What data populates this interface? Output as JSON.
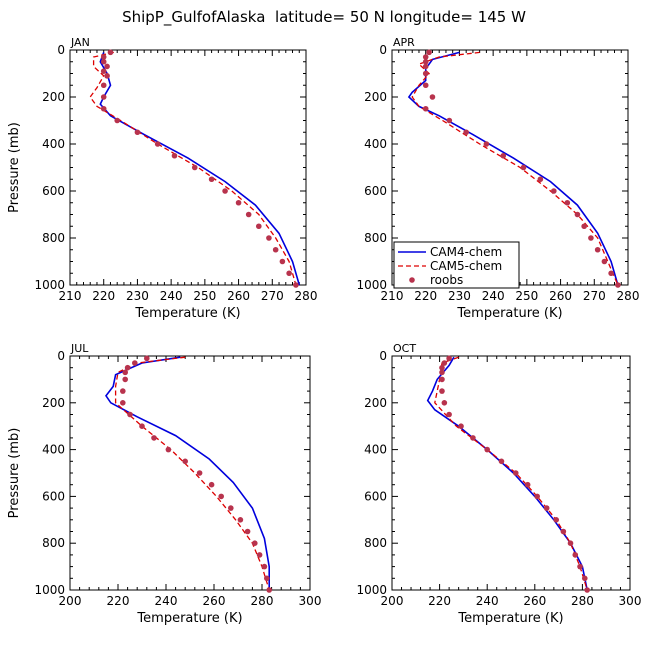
{
  "figure_title": "ShipP_GulfofAlaska  latitude= 50 N longitude= 145 W",
  "colors": {
    "cam4": "#0000dd",
    "cam5": "#dd0000",
    "roobs": "#b8334d"
  },
  "legend": [
    "CAM4-chem",
    "CAM5-chem",
    "roobs"
  ],
  "chart_data": [
    {
      "type": "line",
      "panel": "JAN",
      "xlabel": "Temperature (K)",
      "ylabel": "Pressure (mb)",
      "xlim": [
        210,
        280
      ],
      "ylim": [
        1000,
        0
      ],
      "xticks": [
        "210",
        "220",
        "230",
        "240",
        "250",
        "260",
        "270",
        "280"
      ],
      "yticks": [
        "0",
        "200",
        "400",
        "600",
        "800",
        "1000"
      ],
      "series": [
        {
          "name": "CAM4-chem",
          "style": "solid",
          "points": [
            [
              220,
              10
            ],
            [
              219,
              50
            ],
            [
              221,
              100
            ],
            [
              222,
              150
            ],
            [
              220,
              200
            ],
            [
              219,
              230
            ],
            [
              222,
              280
            ],
            [
              232,
              360
            ],
            [
              245,
              460
            ],
            [
              256,
              560
            ],
            [
              265,
              660
            ],
            [
              272,
              780
            ],
            [
              276,
              900
            ],
            [
              278,
              1000
            ]
          ]
        },
        {
          "name": "CAM5-chem",
          "style": "dashed",
          "points": [
            [
              223,
              10
            ],
            [
              217,
              30
            ],
            [
              217,
              70
            ],
            [
              220,
              110
            ],
            [
              218,
              160
            ],
            [
              216,
              200
            ],
            [
              218,
              240
            ],
            [
              225,
              300
            ],
            [
              236,
              400
            ],
            [
              248,
              500
            ],
            [
              258,
              600
            ],
            [
              266,
              700
            ],
            [
              271,
              800
            ],
            [
              275,
              900
            ],
            [
              277,
              1000
            ]
          ]
        },
        {
          "name": "roobs",
          "style": "markers",
          "points": [
            [
              222,
              10
            ],
            [
              220,
              30
            ],
            [
              220,
              50
            ],
            [
              221,
              70
            ],
            [
              220,
              90
            ],
            [
              221,
              110
            ],
            [
              220,
              150
            ],
            [
              220,
              200
            ],
            [
              220,
              250
            ],
            [
              224,
              300
            ],
            [
              230,
              350
            ],
            [
              236,
              400
            ],
            [
              241,
              450
            ],
            [
              247,
              500
            ],
            [
              252,
              550
            ],
            [
              256,
              600
            ],
            [
              260,
              650
            ],
            [
              263,
              700
            ],
            [
              266,
              750
            ],
            [
              269,
              800
            ],
            [
              271,
              850
            ],
            [
              273,
              900
            ],
            [
              275,
              950
            ],
            [
              277,
              1000
            ]
          ]
        }
      ]
    },
    {
      "type": "line",
      "panel": "APR",
      "xlabel": "Temperature (K)",
      "ylabel": "",
      "xlim": [
        210,
        280
      ],
      "ylim": [
        1000,
        0
      ],
      "xticks": [
        "210",
        "220",
        "230",
        "240",
        "250",
        "260",
        "270",
        "280"
      ],
      "yticks": [
        "0",
        "200",
        "400",
        "600",
        "800",
        "1000"
      ],
      "legend_position": "bottom-left",
      "series": [
        {
          "name": "CAM4-chem",
          "style": "solid",
          "points": [
            [
              230,
              10
            ],
            [
              222,
              40
            ],
            [
              220,
              80
            ],
            [
              220,
              130
            ],
            [
              216,
              180
            ],
            [
              215,
              200
            ],
            [
              218,
              240
            ],
            [
              224,
              280
            ],
            [
              234,
              360
            ],
            [
              246,
              460
            ],
            [
              257,
              560
            ],
            [
              265,
              660
            ],
            [
              271,
              780
            ],
            [
              275,
              900
            ],
            [
              277,
              1000
            ]
          ]
        },
        {
          "name": "CAM5-chem",
          "style": "dashed",
          "points": [
            [
              236,
              10
            ],
            [
              224,
              30
            ],
            [
              218,
              60
            ],
            [
              221,
              100
            ],
            [
              218,
              150
            ],
            [
              216,
              200
            ],
            [
              218,
              240
            ],
            [
              225,
              300
            ],
            [
              236,
              400
            ],
            [
              248,
              500
            ],
            [
              257,
              600
            ],
            [
              265,
              700
            ],
            [
              271,
              800
            ],
            [
              274,
              900
            ],
            [
              277,
              1000
            ]
          ]
        },
        {
          "name": "roobs",
          "style": "markers",
          "points": [
            [
              221,
              10
            ],
            [
              220,
              30
            ],
            [
              220,
              50
            ],
            [
              220,
              70
            ],
            [
              220,
              100
            ],
            [
              220,
              150
            ],
            [
              222,
              200
            ],
            [
              220,
              250
            ],
            [
              227,
              300
            ],
            [
              232,
              350
            ],
            [
              238,
              400
            ],
            [
              243,
              450
            ],
            [
              249,
              500
            ],
            [
              254,
              550
            ],
            [
              258,
              600
            ],
            [
              262,
              650
            ],
            [
              265,
              700
            ],
            [
              267,
              750
            ],
            [
              269,
              800
            ],
            [
              271,
              850
            ],
            [
              273,
              900
            ],
            [
              275,
              950
            ],
            [
              277,
              1000
            ]
          ]
        }
      ]
    },
    {
      "type": "line",
      "panel": "JUL",
      "xlabel": "Temperature (K)",
      "ylabel": "Pressure (mb)",
      "xlim": [
        200,
        300
      ],
      "ylim": [
        1000,
        0
      ],
      "xticks": [
        "200",
        "220",
        "240",
        "260",
        "280",
        "300"
      ],
      "yticks": [
        "0",
        "200",
        "400",
        "600",
        "800",
        "1000"
      ],
      "series": [
        {
          "name": "CAM4-chem",
          "style": "solid",
          "points": [
            [
              246,
              5
            ],
            [
              230,
              30
            ],
            [
              219,
              80
            ],
            [
              218,
              130
            ],
            [
              215,
              170
            ],
            [
              217,
              200
            ],
            [
              228,
              260
            ],
            [
              244,
              340
            ],
            [
              258,
              440
            ],
            [
              268,
              540
            ],
            [
              276,
              650
            ],
            [
              281,
              780
            ],
            [
              283,
              900
            ],
            [
              283,
              1000
            ]
          ]
        },
        {
          "name": "CAM5-chem",
          "style": "dashed",
          "points": [
            [
              248,
              5
            ],
            [
              228,
              30
            ],
            [
              220,
              70
            ],
            [
              219,
              130
            ],
            [
              219,
              200
            ],
            [
              230,
              300
            ],
            [
              242,
              400
            ],
            [
              252,
              500
            ],
            [
              261,
              600
            ],
            [
              269,
              700
            ],
            [
              276,
              800
            ],
            [
              280,
              900
            ],
            [
              283,
              1000
            ]
          ]
        },
        {
          "name": "roobs",
          "style": "markers",
          "points": [
            [
              232,
              10
            ],
            [
              227,
              30
            ],
            [
              224,
              50
            ],
            [
              223,
              70
            ],
            [
              223,
              100
            ],
            [
              222,
              150
            ],
            [
              222,
              200
            ],
            [
              225,
              250
            ],
            [
              230,
              300
            ],
            [
              235,
              350
            ],
            [
              241,
              400
            ],
            [
              248,
              450
            ],
            [
              254,
              500
            ],
            [
              259,
              550
            ],
            [
              263,
              600
            ],
            [
              267,
              650
            ],
            [
              271,
              700
            ],
            [
              274,
              750
            ],
            [
              277,
              800
            ],
            [
              279,
              850
            ],
            [
              281,
              900
            ],
            [
              282,
              950
            ],
            [
              283,
              1000
            ]
          ]
        }
      ]
    },
    {
      "type": "line",
      "panel": "OCT",
      "xlabel": "Temperature (K)",
      "ylabel": "",
      "xlim": [
        200,
        300
      ],
      "ylim": [
        1000,
        0
      ],
      "xticks": [
        "200",
        "220",
        "240",
        "260",
        "280",
        "300"
      ],
      "yticks": [
        "0",
        "200",
        "400",
        "600",
        "800",
        "1000"
      ],
      "series": [
        {
          "name": "CAM4-chem",
          "style": "solid",
          "points": [
            [
              226,
              5
            ],
            [
              224,
              40
            ],
            [
              219,
              100
            ],
            [
              217,
              150
            ],
            [
              215,
              190
            ],
            [
              218,
              230
            ],
            [
              228,
              300
            ],
            [
              240,
              400
            ],
            [
              251,
              500
            ],
            [
              260,
              600
            ],
            [
              268,
              700
            ],
            [
              275,
              800
            ],
            [
              280,
              900
            ],
            [
              282,
              1000
            ]
          ]
        },
        {
          "name": "CAM5-chem",
          "style": "dashed",
          "points": [
            [
              228,
              5
            ],
            [
              221,
              30
            ],
            [
              220,
              100
            ],
            [
              218,
              200
            ],
            [
              227,
              300
            ],
            [
              240,
              400
            ],
            [
              252,
              500
            ],
            [
              261,
              600
            ],
            [
              269,
              700
            ],
            [
              275,
              800
            ],
            [
              279,
              900
            ],
            [
              282,
              1000
            ]
          ]
        },
        {
          "name": "roobs",
          "style": "markers",
          "points": [
            [
              224,
              10
            ],
            [
              222,
              30
            ],
            [
              221,
              50
            ],
            [
              221,
              70
            ],
            [
              221,
              100
            ],
            [
              221,
              150
            ],
            [
              222,
              200
            ],
            [
              224,
              250
            ],
            [
              229,
              300
            ],
            [
              234,
              350
            ],
            [
              240,
              400
            ],
            [
              246,
              450
            ],
            [
              252,
              500
            ],
            [
              257,
              550
            ],
            [
              261,
              600
            ],
            [
              265,
              650
            ],
            [
              269,
              700
            ],
            [
              272,
              750
            ],
            [
              275,
              800
            ],
            [
              277,
              850
            ],
            [
              279,
              900
            ],
            [
              281,
              950
            ],
            [
              282,
              1000
            ]
          ]
        }
      ]
    }
  ]
}
